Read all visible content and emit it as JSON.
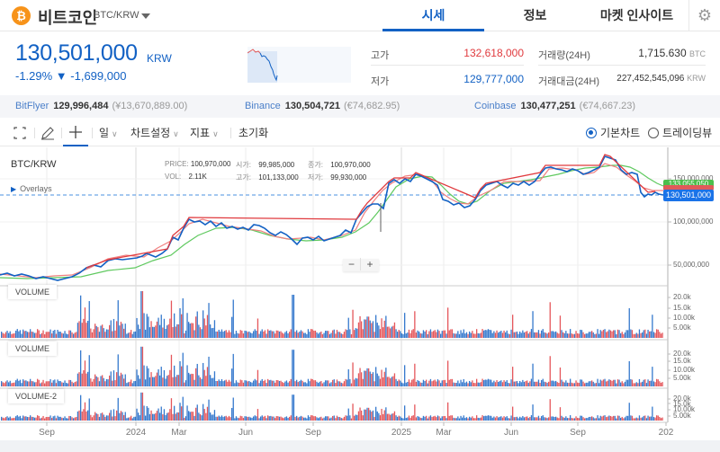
{
  "header": {
    "coin_icon": "bitcoin-icon",
    "coin_symbol": "₿",
    "coin_name": "비트코인",
    "pair": "BTC/KRW",
    "tabs": [
      {
        "label": "시세",
        "active": true
      },
      {
        "label": "정보",
        "active": false
      },
      {
        "label": "마켓 인사이트",
        "active": false
      }
    ],
    "settings_icon": "gear-icon",
    "settings_glyph": "⚙"
  },
  "price": {
    "current": "130,501,000",
    "unit": "KRW",
    "change_text": "-1.29% ▼ -1,699,000",
    "change_pct": "-1.29%",
    "change_abs": "-1,699,000"
  },
  "stats": {
    "high_label": "고가",
    "high_value": "132,618,000",
    "low_label": "저가",
    "low_value": "129,777,000",
    "volume_label": "거래량(24H)",
    "volume_value": "1,715.630",
    "volume_unit": "BTC",
    "amount_label": "거래대금(24H)",
    "amount_value": "227,452,545,096",
    "amount_unit": "KRW"
  },
  "exchanges": [
    {
      "name": "BitFlyer",
      "price": "129,996,484",
      "fx": "(¥13,670,889.00)"
    },
    {
      "name": "Binance",
      "price": "130,504,721",
      "fx": "(€74,682.95)"
    },
    {
      "name": "Coinbase",
      "price": "130,477,251",
      "fx": "(€74,667.23)"
    }
  ],
  "toolbar": {
    "fullscreen_icon": "fullscreen-icon",
    "draw_icon": "pencil-icon",
    "crosshair_icon": "crosshair-icon",
    "interval": "일",
    "chart_settings": "차트설정",
    "indicators": "지표",
    "reset": "초기화",
    "view_basic": "기본차트",
    "view_tradingview": "트레이딩뷰",
    "selected_view": "기본차트"
  },
  "chart": {
    "pair": "BTC/KRW",
    "ohlc": {
      "price_label": "PRICE:",
      "price": "100,970,000",
      "vol_label": "VOL:",
      "vol": "2.11K",
      "open_label": "시가:",
      "open": "99,985,000",
      "high_label": "고가:",
      "high": "101,133,000",
      "close_label": "종가:",
      "close": "100,970,000",
      "low_label": "저가:",
      "low": "99,930,000"
    },
    "overlays_label": "Overlays",
    "y_axis": [
      "150,000,000",
      "100,000,000",
      "50,000,000"
    ],
    "current_price_tag": "130,501,000",
    "ma_tag": "133,055,050",
    "zoom_minus": "−",
    "zoom_plus": "+",
    "volume_panels": [
      {
        "label": "VOLUME",
        "ticks": [
          "20.0k",
          "15.0k",
          "10.00k",
          "5.00k"
        ]
      },
      {
        "label": "VOLUME",
        "ticks": [
          "20.0k",
          "15.0k",
          "10.00k",
          "5.00k"
        ]
      },
      {
        "label": "VOLUME-2",
        "ticks": [
          "20.0k",
          "15.0k",
          "10.00k",
          "5.00k"
        ]
      }
    ],
    "x_axis": [
      "Sep",
      "2024",
      "Mar",
      "Jun",
      "Sep",
      "2025",
      "Mar",
      "Jun",
      "Sep",
      "202"
    ],
    "colors": {
      "up": "#e03a3e",
      "down": "#1261c4",
      "ma_short": "#f08080",
      "ma_long": "#5fc95f",
      "current_line": "#4a90e2"
    }
  },
  "chart_data": {
    "type": "line",
    "title": "BTC/KRW",
    "xlabel": "",
    "ylabel": "KRW",
    "x": [
      "2023-08",
      "2023-09",
      "2023-10",
      "2023-11",
      "2023-12",
      "2024-01",
      "2024-02",
      "2024-03",
      "2024-04",
      "2024-05",
      "2024-06",
      "2024-07",
      "2024-08",
      "2024-09",
      "2024-10",
      "2024-11",
      "2024-12",
      "2025-01",
      "2025-02",
      "2025-03",
      "2025-04",
      "2025-05",
      "2025-06",
      "2025-07",
      "2025-08",
      "2025-09",
      "2025-10",
      "2025-11",
      "2025-12"
    ],
    "series": [
      {
        "name": "Price",
        "values": [
          40000000,
          38000000,
          37000000,
          37000000,
          48000000,
          57000000,
          62000000,
          98000000,
          98000000,
          92000000,
          95000000,
          90000000,
          85000000,
          80000000,
          90000000,
          130000000,
          145000000,
          150000000,
          140000000,
          120000000,
          118000000,
          140000000,
          145000000,
          155000000,
          160000000,
          155000000,
          170000000,
          135000000,
          130501000
        ]
      }
    ],
    "ylim": [
      30000000,
      180000000
    ],
    "y_ticks": [
      50000000,
      100000000,
      150000000
    ],
    "current": 130501000
  }
}
